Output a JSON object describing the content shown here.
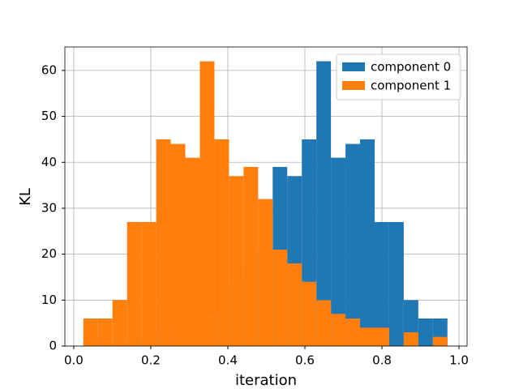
{
  "chart_data": {
    "type": "histogram",
    "xlabel": "iteration",
    "ylabel": "KL",
    "bins": [
      0.025,
      0.0628,
      0.1006,
      0.1384,
      0.1762,
      0.214,
      0.2518,
      0.2896,
      0.3274,
      0.3652,
      0.403,
      0.4408,
      0.4786,
      0.5164,
      0.5542,
      0.592,
      0.6298,
      0.6676,
      0.7054,
      0.7432,
      0.781,
      0.8188,
      0.8566,
      0.8944,
      0.9322,
      0.97
    ],
    "series": [
      {
        "name": "component 0",
        "color": "#1f77b4",
        "values": [
          2,
          0,
          0,
          1,
          1,
          3,
          4,
          6,
          7,
          10,
          14,
          18,
          21,
          39,
          37,
          45,
          62,
          41,
          44,
          45,
          27,
          27,
          10,
          6,
          6
        ]
      },
      {
        "name": "component 1",
        "color": "#ff7f0e",
        "values": [
          6,
          6,
          10,
          27,
          27,
          45,
          44,
          41,
          62,
          45,
          37,
          39,
          32,
          21,
          18,
          14,
          10,
          7,
          6,
          4,
          4,
          0,
          3,
          0,
          2
        ]
      }
    ],
    "xlim": [
      -0.023,
      1.021
    ],
    "xticks": [
      {
        "value": 0,
        "label": "0.0"
      },
      {
        "value": 0.2,
        "label": "0.2"
      },
      {
        "value": 0.4,
        "label": "0.4"
      },
      {
        "value": 0.6,
        "label": "0.6"
      },
      {
        "value": 0.8,
        "label": "0.8"
      },
      {
        "value": 1,
        "label": "1.0"
      }
    ],
    "ylim": [
      0,
      65.1
    ],
    "yticks": [
      0,
      10,
      20,
      30,
      40,
      50,
      60
    ],
    "grid": true,
    "legend": "upper right"
  }
}
